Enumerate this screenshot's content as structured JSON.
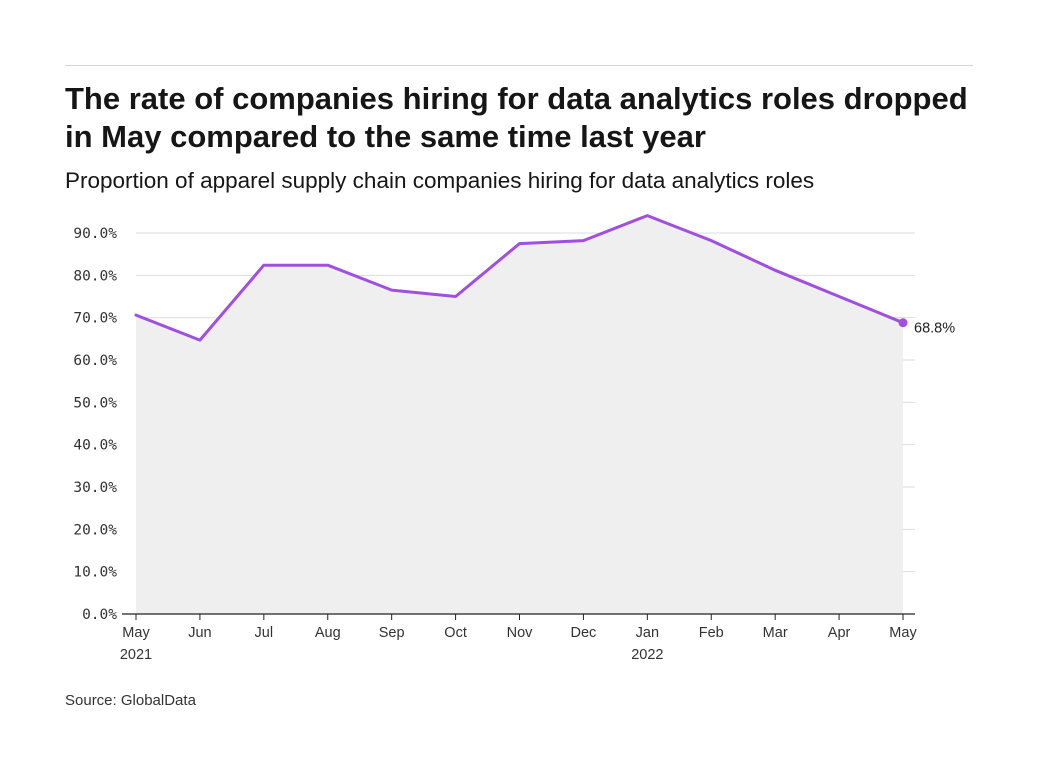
{
  "title": "The rate of companies hiring for data analytics roles dropped in May compared to the same time last year",
  "subtitle": "Proportion of apparel supply chain companies hiring for data analytics roles",
  "source": "Source: GlobalData",
  "colors": {
    "line": "#a04fe0",
    "area": "#efeff0",
    "grid": "#dddddd",
    "axis": "#222222"
  },
  "chart_data": {
    "type": "area",
    "title": "The rate of companies hiring for data analytics roles dropped in May compared to the same time last year",
    "subtitle": "Proportion of apparel supply chain companies hiring for data analytics roles",
    "xlabel": "",
    "ylabel": "",
    "ylim": [
      0,
      90
    ],
    "grid": true,
    "y_ticks": [
      0,
      10,
      20,
      30,
      40,
      50,
      60,
      70,
      80,
      90
    ],
    "y_tick_labels": [
      "0.0%",
      "10.0%",
      "20.0%",
      "30.0%",
      "40.0%",
      "50.0%",
      "60.0%",
      "70.0%",
      "80.0%",
      "90.0%"
    ],
    "categories": [
      "May",
      "Jun",
      "Jul",
      "Aug",
      "Sep",
      "Oct",
      "Nov",
      "Dec",
      "Jan",
      "Feb",
      "Mar",
      "Apr",
      "May"
    ],
    "category_sublabels": [
      "2021",
      "",
      "",
      "",
      "",
      "",
      "",
      "",
      "2022",
      "",
      "",
      "",
      ""
    ],
    "series": [
      {
        "name": "Proportion of companies hiring for data analytics roles",
        "values": [
          70.6,
          64.7,
          82.4,
          82.4,
          76.5,
          75.0,
          87.5,
          88.2,
          94.1,
          88.2,
          81.2,
          75.0,
          68.8
        ]
      }
    ],
    "end_label": "68.8%"
  }
}
